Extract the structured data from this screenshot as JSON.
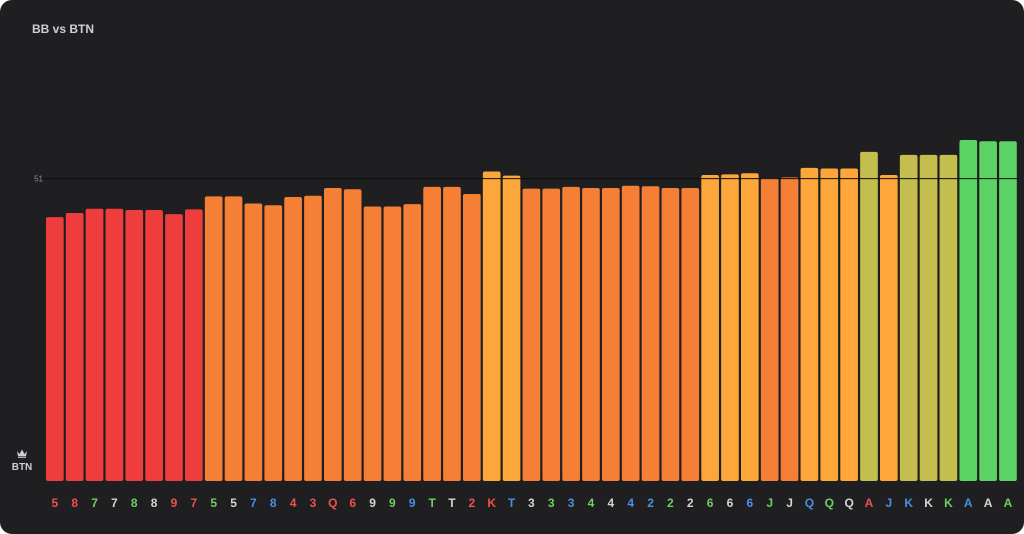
{
  "chart_data": {
    "type": "bar",
    "title": "BB vs BTN",
    "ytick": 51,
    "position_label": "BTN",
    "position_icon": "crown-icon",
    "categories": [
      "5",
      "8",
      "7",
      "7",
      "8",
      "8",
      "9",
      "7",
      "5",
      "5",
      "7",
      "8",
      "4",
      "3",
      "Q",
      "6",
      "9",
      "9",
      "9",
      "T",
      "T",
      "2",
      "K",
      "T",
      "3",
      "3",
      "3",
      "4",
      "4",
      "4",
      "2",
      "2",
      "2",
      "6",
      "6",
      "6",
      "J",
      "J",
      "Q",
      "Q",
      "Q",
      "A",
      "J",
      "K",
      "K",
      "K",
      "A",
      "A",
      "A"
    ],
    "label_colors": [
      "#f0504c",
      "#f0504c",
      "#6fcf60",
      "#d4d4d4",
      "#6fcf60",
      "#d4d4d4",
      "#f0504c",
      "#f0504c",
      "#6fcf60",
      "#d4d4d4",
      "#4a8fe6",
      "#4a8fe6",
      "#f0504c",
      "#f0504c",
      "#f0504c",
      "#f0504c",
      "#d4d4d4",
      "#6fcf60",
      "#4a8fe6",
      "#6fcf60",
      "#d4d4d4",
      "#f0504c",
      "#f0504c",
      "#4a8fe6",
      "#d4d4d4",
      "#6fcf60",
      "#4a8fe6",
      "#6fcf60",
      "#d4d4d4",
      "#4a8fe6",
      "#4a8fe6",
      "#6fcf60",
      "#d4d4d4",
      "#6fcf60",
      "#d4d4d4",
      "#4a8fe6",
      "#6fcf60",
      "#d4d4d4",
      "#4a8fe6",
      "#6fcf60",
      "#d4d4d4",
      "#f0504c",
      "#4a8fe6",
      "#4a8fe6",
      "#d4d4d4",
      "#6fcf60",
      "#4a8fe6",
      "#d4d4d4",
      "#6fcf60"
    ],
    "values": [
      44.5,
      45.2,
      45.9,
      45.9,
      45.7,
      45.7,
      45.0,
      45.8,
      48.0,
      48.0,
      46.8,
      46.5,
      47.9,
      48.1,
      49.4,
      49.2,
      46.3,
      46.3,
      46.7,
      49.6,
      49.6,
      48.4,
      52.2,
      51.5,
      49.3,
      49.3,
      49.6,
      49.4,
      49.4,
      49.8,
      49.7,
      49.4,
      49.4,
      51.6,
      51.7,
      51.9,
      51.1,
      51.2,
      52.8,
      52.7,
      52.7,
      55.5,
      51.6,
      55.0,
      55.0,
      55.0,
      57.5,
      57.3,
      57.3
    ],
    "bar_colors": [
      "#ee3d3c",
      "#ee3d3c",
      "#ee3d3c",
      "#ee3d3c",
      "#ee3d3c",
      "#ee3d3c",
      "#ee3d3c",
      "#ee3d3c",
      "#f67f36",
      "#f67f36",
      "#f67f36",
      "#f67f36",
      "#f67f36",
      "#f67f36",
      "#f67f36",
      "#f67f36",
      "#f67f36",
      "#f67f36",
      "#f67f36",
      "#f67f36",
      "#f67f36",
      "#f67f36",
      "#fda73a",
      "#fda73a",
      "#f67f36",
      "#f67f36",
      "#f67f36",
      "#f67f36",
      "#f67f36",
      "#f67f36",
      "#f67f36",
      "#f67f36",
      "#f67f36",
      "#fda73a",
      "#fda73a",
      "#fda73a",
      "#f67f36",
      "#f67f36",
      "#fda73a",
      "#fda73a",
      "#fda73a",
      "#c4be4e",
      "#fda73a",
      "#c4be4e",
      "#c4be4e",
      "#c4be4e",
      "#5bd465",
      "#5bd465",
      "#5bd465"
    ],
    "ylim": [
      0,
      60
    ],
    "xlabel": "",
    "ylabel": ""
  }
}
